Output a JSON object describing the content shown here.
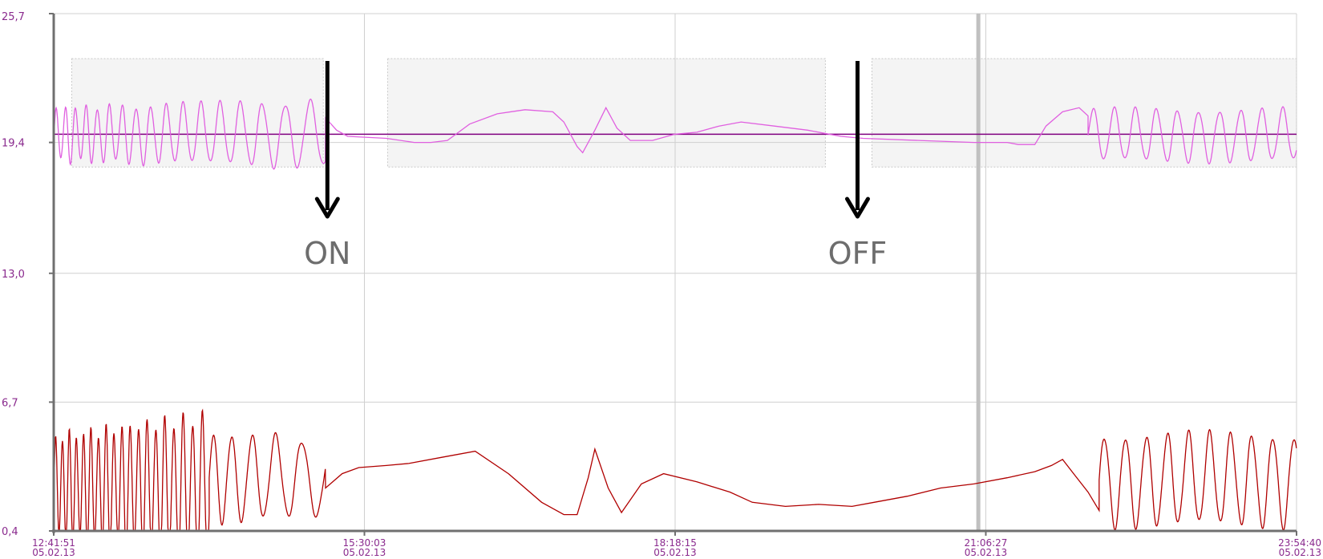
{
  "chart_data": {
    "type": "line",
    "title": "",
    "xlabel": "",
    "ylabel": "",
    "ylim": [
      0.4,
      25.7
    ],
    "grid": true,
    "y_ticks": [
      "25,7",
      "19,4",
      "13,0",
      "6,7",
      "0,4"
    ],
    "y_tick_values": [
      25.7,
      19.4,
      13.0,
      6.7,
      0.4
    ],
    "x_ticks": [
      {
        "time": "12:41:51",
        "date": "05.02.13"
      },
      {
        "time": "15:30:03",
        "date": "05.02.13"
      },
      {
        "time": "18:18:15",
        "date": "05.02.13"
      },
      {
        "time": "21:06:27",
        "date": "05.02.13"
      },
      {
        "time": "23:54:40",
        "date": "05.02.13"
      }
    ],
    "x_range_hours": [
      12.6975,
      23.9111
    ],
    "setpoint": 19.8,
    "annotations": [
      {
        "text": "ON",
        "time": "15:10"
      },
      {
        "text": "OFF",
        "time": "19:57"
      }
    ],
    "series": [
      {
        "color": "#e060e0",
        "segments": [
          {
            "type": "osc",
            "t0": 12.7,
            "t1": 15.15,
            "base": 19.8,
            "amp": [
              1.3,
              1.6
            ],
            "periods": [
              0.08,
              0.24
            ]
          },
          {
            "type": "pts",
            "pts": [
              [
                15.15,
                20.6
              ],
              [
                15.25,
                20.0
              ],
              [
                15.35,
                19.7
              ],
              [
                15.7,
                19.6
              ],
              [
                15.95,
                19.4
              ],
              [
                16.1,
                19.4
              ],
              [
                16.25,
                19.5
              ],
              [
                16.45,
                20.3
              ],
              [
                16.7,
                20.8
              ],
              [
                16.95,
                21.0
              ],
              [
                17.2,
                20.9
              ],
              [
                17.3,
                20.4
              ],
              [
                17.42,
                19.2
              ],
              [
                17.47,
                18.9
              ],
              [
                17.58,
                20.0
              ],
              [
                17.68,
                21.1
              ],
              [
                17.78,
                20.1
              ],
              [
                17.9,
                19.5
              ],
              [
                18.1,
                19.5
              ],
              [
                18.3,
                19.8
              ],
              [
                18.5,
                19.9
              ],
              [
                18.7,
                20.2
              ],
              [
                18.9,
                20.4
              ],
              [
                19.2,
                20.2
              ],
              [
                19.5,
                20.0
              ],
              [
                19.8,
                19.7
              ],
              [
                20.0,
                19.6
              ],
              [
                20.5,
                19.5
              ],
              [
                21.0,
                19.4
              ],
              [
                21.3,
                19.4
              ],
              [
                21.4,
                19.3
              ],
              [
                21.55,
                19.3
              ],
              [
                21.65,
                20.2
              ],
              [
                21.8,
                20.9
              ],
              [
                21.95,
                21.1
              ],
              [
                22.03,
                20.7
              ]
            ]
          },
          {
            "type": "osc",
            "t0": 22.03,
            "t1": 23.91,
            "base": 19.75,
            "amp": [
              1.25,
              1.25
            ],
            "periods": [
              0.19,
              0.19
            ]
          }
        ]
      },
      {
        "color": "#b00000",
        "segments": [
          {
            "type": "osc",
            "t0": 12.7,
            "t1": 14.1,
            "base": 2.5,
            "amp": [
              2.5,
              3.5
            ],
            "periods": [
              0.06,
              0.09
            ]
          },
          {
            "type": "osc",
            "t0": 14.1,
            "t1": 15.15,
            "base": 3.0,
            "amp": [
              2.2,
              1.8
            ],
            "periods": [
              0.15,
              0.28
            ]
          },
          {
            "type": "pts",
            "pts": [
              [
                15.15,
                2.5
              ],
              [
                15.3,
                3.2
              ],
              [
                15.45,
                3.5
              ],
              [
                15.7,
                3.6
              ],
              [
                15.9,
                3.7
              ],
              [
                16.2,
                4.0
              ],
              [
                16.5,
                4.3
              ],
              [
                16.8,
                3.2
              ],
              [
                17.1,
                1.8
              ],
              [
                17.3,
                1.2
              ],
              [
                17.42,
                1.2
              ],
              [
                17.52,
                3.0
              ],
              [
                17.58,
                4.4
              ],
              [
                17.7,
                2.5
              ],
              [
                17.82,
                1.3
              ],
              [
                18.0,
                2.7
              ],
              [
                18.2,
                3.2
              ],
              [
                18.5,
                2.8
              ],
              [
                18.8,
                2.3
              ],
              [
                19.0,
                1.8
              ],
              [
                19.3,
                1.6
              ],
              [
                19.6,
                1.7
              ],
              [
                19.9,
                1.6
              ],
              [
                20.1,
                1.8
              ],
              [
                20.4,
                2.1
              ],
              [
                20.7,
                2.5
              ],
              [
                21.0,
                2.7
              ],
              [
                21.3,
                3.0
              ],
              [
                21.55,
                3.3
              ],
              [
                21.7,
                3.6
              ],
              [
                21.8,
                3.9
              ],
              [
                21.9,
                3.2
              ],
              [
                22.03,
                2.3
              ],
              [
                22.13,
                1.4
              ]
            ]
          },
          {
            "type": "osc",
            "t0": 22.13,
            "t1": 23.91,
            "base": 2.9,
            "amp": [
              2.2,
              2.2
            ],
            "periods": [
              0.19,
              0.19
            ]
          }
        ]
      }
    ]
  },
  "colors": {
    "setpoint_line": "#800080",
    "axis": "#707070",
    "grid": "#d0d0d0",
    "band_fill": "#f4f4f4",
    "cursor": "#c0c0c0"
  },
  "bands": [
    {
      "t0": 12.86,
      "t1": 15.13
    },
    {
      "t0": 15.71,
      "t1": 19.66
    },
    {
      "t0": 20.08,
      "t1": 23.91
    }
  ],
  "cursor_time": 21.04
}
